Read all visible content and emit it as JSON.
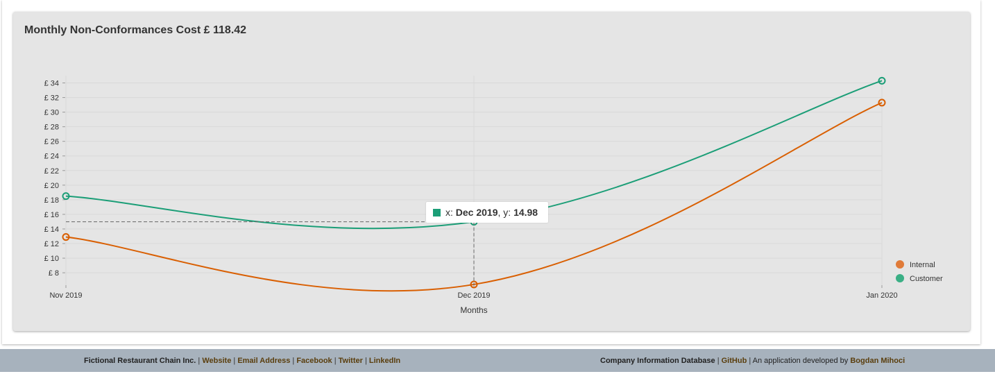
{
  "chart_data": {
    "type": "line",
    "title": "Monthly Non-Conformances Cost £ 118.42",
    "xlabel": "Months",
    "ylabel": "",
    "categories": [
      "Nov 2019",
      "Dec 2019",
      "Jan 2020"
    ],
    "ylim": [
      6.3,
      35
    ],
    "yticks": [
      8,
      10,
      12,
      14,
      16,
      18,
      20,
      22,
      24,
      26,
      28,
      30,
      32,
      34
    ],
    "ytick_prefix": "£ ",
    "grid": true,
    "legend_position": "bottom-right",
    "series": [
      {
        "name": "Internal",
        "values": [
          12.9,
          6.4,
          31.3
        ],
        "color": "#d95f02",
        "legend_color": "#e07b39"
      },
      {
        "name": "Customer",
        "values": [
          18.5,
          14.98,
          34.3
        ],
        "color": "#1b9e77",
        "legend_color": "#3aaf85"
      }
    ],
    "tooltip": {
      "series": "Customer",
      "x": "Dec 2019",
      "y": "14.98"
    }
  },
  "footer": {
    "left_brand": "Fictional Restaurant Chain Inc.",
    "links_left": [
      "Website",
      "Email Address",
      "Facebook",
      "Twitter",
      "LinkedIn"
    ],
    "right_brand": "Company Information Database",
    "github": "GitHub",
    "credit_text": "An application developed by",
    "author": "Bogdan Mihoci"
  },
  "colors": {
    "card_bg": "#e5e5e5",
    "footer_bg": "#a7b2bd",
    "link": "#5a3e0d"
  }
}
